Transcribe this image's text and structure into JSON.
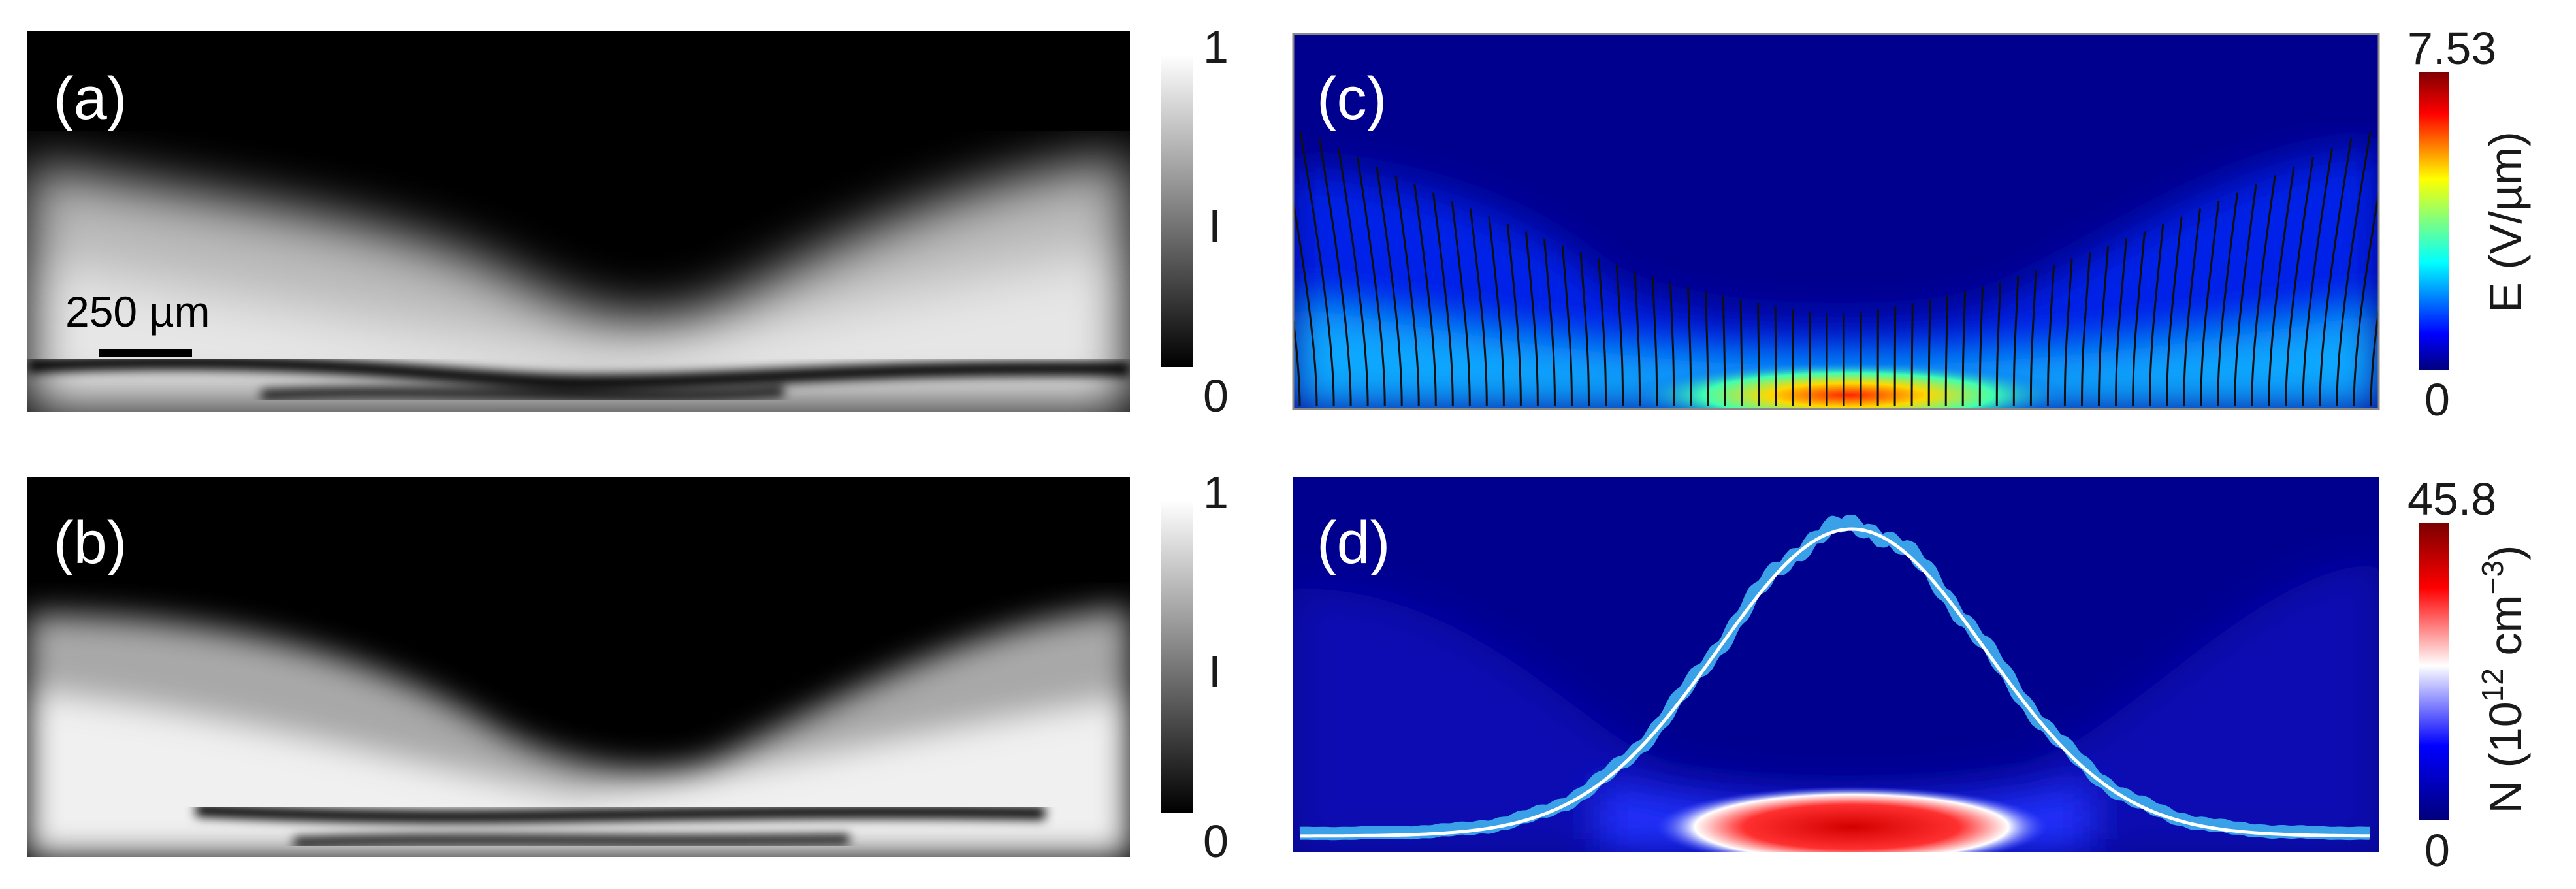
{
  "panels": {
    "a": {
      "label": "(a)",
      "scale_bar": "250 µm"
    },
    "b": {
      "label": "(b)"
    },
    "c": {
      "label": "(c)"
    },
    "d": {
      "label": "(d)"
    }
  },
  "colorbars": {
    "a": {
      "max": "1",
      "min": "0",
      "label": "I",
      "colormap": "gray"
    },
    "b": {
      "max": "1",
      "min": "0",
      "label": "I",
      "colormap": "gray"
    },
    "c": {
      "max": "7.53",
      "min": "0",
      "label": "E (V/µm)",
      "colormap": "jet"
    },
    "d": {
      "max": "45.8",
      "min": "0",
      "label_prefix": "N (10",
      "label_exp1": "12",
      "label_mid": " cm",
      "label_exp2": "−3",
      "label_suffix": ")",
      "colormap": "blue-white-red"
    }
  },
  "colors": {
    "field_background": "#00008f",
    "profile_data": "#3aa0e8",
    "profile_fit": "#ffffff"
  }
}
